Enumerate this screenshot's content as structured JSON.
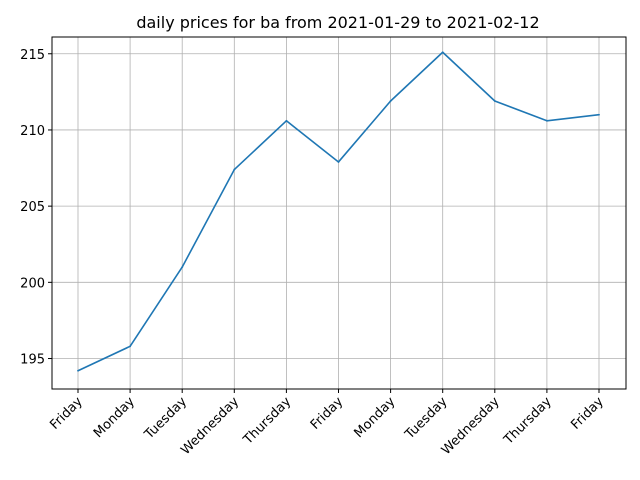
{
  "chart_data": {
    "type": "line",
    "title": "daily prices for ba from 2021-01-29 to 2021-02-12",
    "xlabel": "",
    "ylabel": "",
    "categories": [
      "Friday",
      "Monday",
      "Tuesday",
      "Wednesday",
      "Thursday",
      "Friday",
      "Monday",
      "Tuesday",
      "Wednesday",
      "Thursday",
      "Friday"
    ],
    "series": [
      {
        "values": [
          194.2,
          195.8,
          201.0,
          207.4,
          210.6,
          207.9,
          211.9,
          215.1,
          211.9,
          210.6,
          211.0
        ],
        "color": "#1f77b4"
      }
    ],
    "ylim": [
      193.0,
      216.1
    ],
    "yticks": [
      195,
      200,
      205,
      210,
      215
    ],
    "grid": true,
    "legend": "none"
  }
}
